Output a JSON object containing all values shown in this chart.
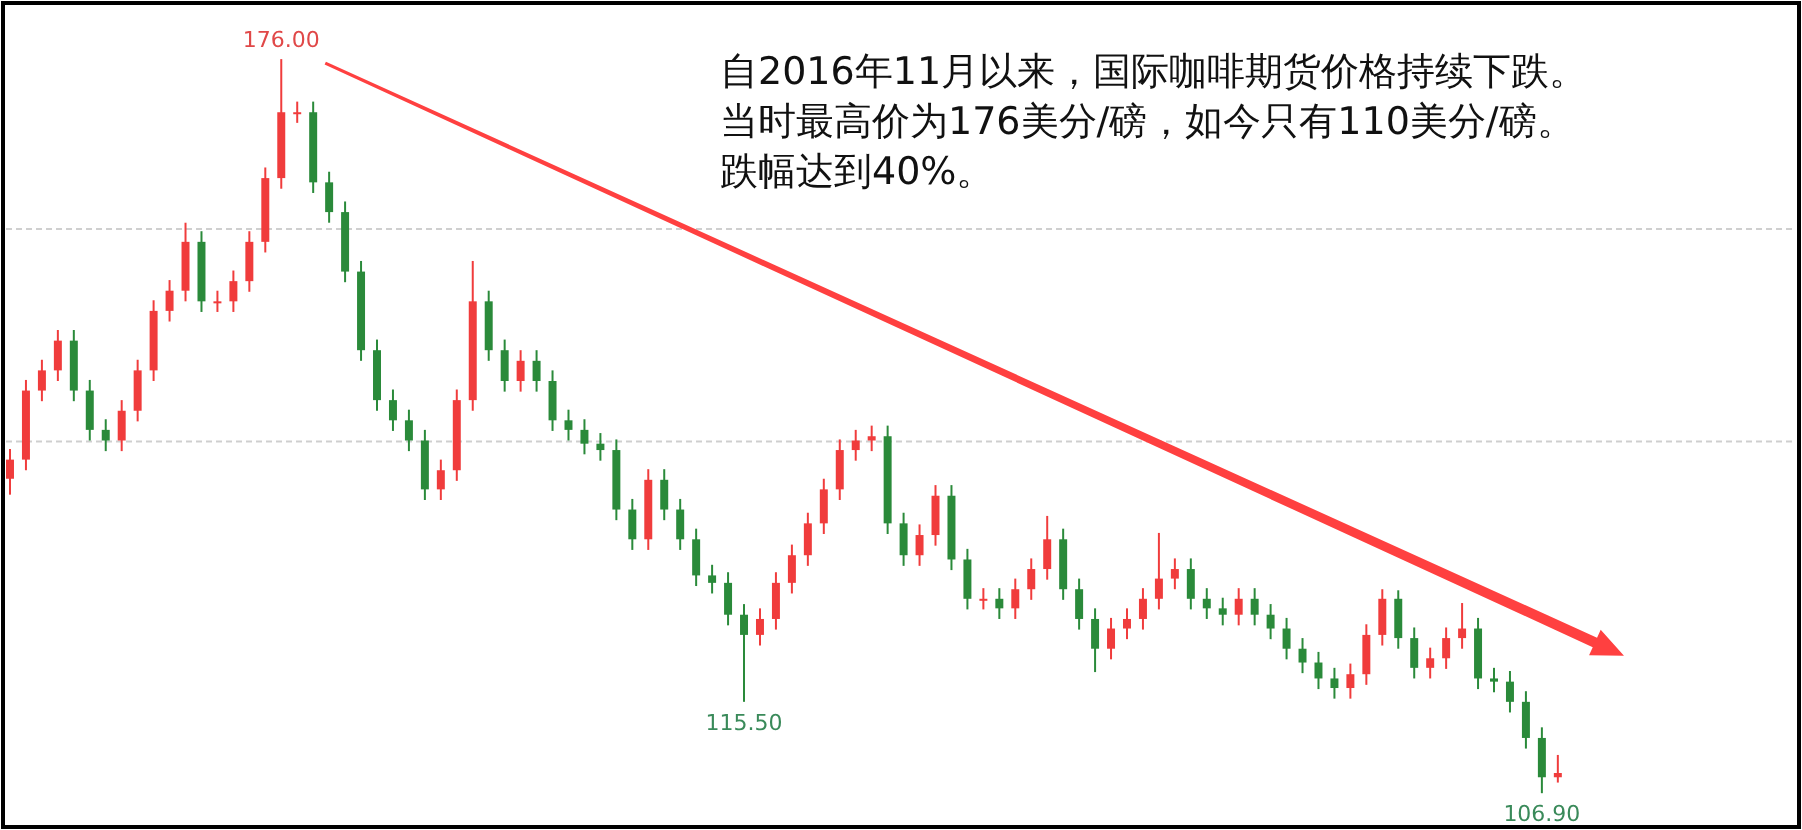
{
  "chart_data": {
    "type": "candlestick",
    "categories": [
      null,
      null,
      null,
      null,
      null,
      null,
      null,
      null,
      null,
      null,
      null,
      null,
      null,
      null,
      null,
      null,
      null,
      null,
      null,
      null,
      null,
      null,
      null,
      null,
      null,
      null,
      null,
      null,
      null,
      null,
      null,
      null,
      null,
      null,
      null,
      null,
      null,
      null,
      null,
      null,
      null,
      null,
      null,
      null,
      null,
      null,
      null,
      null,
      null,
      null,
      null,
      null,
      null,
      null,
      null,
      null,
      null,
      null,
      null,
      null,
      null,
      null,
      null,
      null,
      null,
      null,
      null,
      null,
      null,
      null,
      null,
      null,
      null,
      null,
      null,
      null,
      null,
      null,
      null,
      null,
      null,
      null,
      null,
      null,
      null,
      null,
      null,
      null,
      null,
      null,
      null,
      null,
      null,
      null,
      null,
      null,
      null,
      null
    ],
    "ohlc": [
      [
        136.5,
        139.3,
        135.0,
        138.3
      ],
      [
        138.3,
        145.8,
        137.3,
        144.8
      ],
      [
        144.8,
        147.7,
        143.8,
        146.7
      ],
      [
        146.7,
        150.5,
        145.7,
        149.5
      ],
      [
        149.5,
        150.5,
        143.8,
        144.8
      ],
      [
        144.8,
        145.8,
        140.1,
        141.1
      ],
      [
        141.1,
        142.1,
        139.1,
        140.1
      ],
      [
        140.1,
        143.9,
        139.1,
        142.9
      ],
      [
        142.9,
        147.7,
        141.9,
        146.7
      ],
      [
        146.7,
        153.3,
        145.7,
        152.3
      ],
      [
        152.3,
        155.2,
        151.3,
        154.2
      ],
      [
        154.2,
        160.6,
        153.2,
        158.8
      ],
      [
        158.8,
        159.8,
        152.2,
        153.2
      ],
      [
        153.2,
        154.2,
        152.2,
        153.2
      ],
      [
        153.2,
        156.1,
        152.2,
        155.1
      ],
      [
        155.1,
        159.8,
        154.1,
        158.8
      ],
      [
        158.8,
        165.8,
        157.8,
        164.8
      ],
      [
        164.8,
        176.0,
        163.8,
        171.0
      ],
      [
        171.0,
        172.0,
        170.0,
        171.0
      ],
      [
        171.0,
        172.0,
        163.4,
        164.4
      ],
      [
        164.4,
        165.4,
        160.6,
        161.6
      ],
      [
        161.6,
        162.6,
        155.0,
        156.0
      ],
      [
        156.0,
        157.0,
        147.6,
        148.6
      ],
      [
        148.6,
        149.6,
        142.9,
        143.9
      ],
      [
        143.9,
        144.9,
        141.0,
        142.0
      ],
      [
        142.0,
        143.0,
        139.1,
        140.1
      ],
      [
        140.1,
        141.1,
        134.5,
        135.5
      ],
      [
        135.5,
        138.3,
        134.5,
        137.3
      ],
      [
        137.3,
        144.9,
        136.3,
        143.9
      ],
      [
        143.9,
        157.0,
        142.9,
        153.2
      ],
      [
        153.2,
        154.2,
        147.6,
        148.6
      ],
      [
        148.6,
        149.6,
        144.7,
        145.7
      ],
      [
        145.7,
        148.6,
        144.7,
        147.6
      ],
      [
        147.6,
        148.6,
        144.7,
        145.7
      ],
      [
        145.7,
        146.7,
        141.0,
        142.0
      ],
      [
        142.0,
        143.0,
        140.1,
        141.1
      ],
      [
        141.1,
        142.1,
        138.8,
        139.8
      ],
      [
        139.8,
        140.8,
        138.2,
        139.2
      ],
      [
        139.2,
        140.2,
        132.6,
        133.6
      ],
      [
        133.6,
        134.6,
        129.8,
        130.8
      ],
      [
        130.8,
        137.4,
        129.8,
        136.4
      ],
      [
        136.4,
        137.4,
        132.6,
        133.6
      ],
      [
        133.6,
        134.6,
        129.8,
        130.8
      ],
      [
        130.8,
        131.8,
        126.4,
        127.4
      ],
      [
        127.4,
        128.4,
        125.7,
        126.7
      ],
      [
        126.7,
        127.7,
        122.7,
        123.7
      ],
      [
        123.7,
        124.7,
        115.5,
        121.8
      ],
      [
        121.8,
        124.3,
        120.8,
        123.3
      ],
      [
        123.3,
        127.7,
        122.3,
        126.7
      ],
      [
        126.7,
        130.3,
        125.7,
        129.3
      ],
      [
        129.3,
        133.3,
        128.3,
        132.3
      ],
      [
        132.3,
        136.5,
        131.3,
        135.5
      ],
      [
        135.5,
        140.2,
        134.5,
        139.2
      ],
      [
        139.2,
        141.1,
        138.2,
        140.1
      ],
      [
        140.1,
        141.5,
        139.1,
        140.5
      ],
      [
        140.5,
        141.5,
        131.3,
        132.3
      ],
      [
        132.3,
        133.3,
        128.3,
        129.3
      ],
      [
        129.3,
        132.2,
        128.3,
        131.2
      ],
      [
        131.2,
        135.9,
        130.2,
        134.9
      ],
      [
        134.9,
        135.9,
        127.9,
        128.9
      ],
      [
        128.9,
        129.9,
        124.2,
        125.2
      ],
      [
        125.2,
        126.2,
        124.2,
        125.2
      ],
      [
        125.2,
        126.2,
        123.3,
        124.3
      ],
      [
        124.3,
        127.1,
        123.3,
        126.1
      ],
      [
        126.1,
        129.0,
        125.1,
        128.0
      ],
      [
        128.0,
        133.0,
        127.0,
        130.8
      ],
      [
        130.8,
        131.8,
        125.1,
        126.1
      ],
      [
        126.1,
        127.1,
        122.3,
        123.3
      ],
      [
        123.3,
        124.3,
        118.3,
        120.5
      ],
      [
        120.5,
        123.4,
        119.5,
        122.4
      ],
      [
        122.4,
        124.3,
        121.4,
        123.3
      ],
      [
        123.3,
        126.2,
        122.3,
        125.2
      ],
      [
        125.2,
        131.4,
        124.2,
        127.1
      ],
      [
        127.1,
        129.0,
        126.1,
        128.0
      ],
      [
        128.0,
        129.0,
        124.2,
        125.2
      ],
      [
        125.2,
        126.2,
        123.3,
        124.3
      ],
      [
        124.3,
        125.3,
        122.7,
        123.7
      ],
      [
        123.7,
        126.2,
        122.7,
        125.2
      ],
      [
        125.2,
        126.2,
        122.7,
        123.7
      ],
      [
        123.7,
        124.7,
        121.4,
        122.4
      ],
      [
        122.4,
        123.4,
        119.5,
        120.5
      ],
      [
        120.5,
        121.5,
        118.2,
        119.2
      ],
      [
        119.2,
        120.2,
        116.7,
        117.7
      ],
      [
        117.7,
        118.7,
        115.8,
        116.8
      ],
      [
        116.8,
        119.1,
        115.8,
        118.1
      ],
      [
        118.1,
        122.8,
        117.1,
        121.8
      ],
      [
        121.8,
        126.1,
        120.8,
        125.2
      ],
      [
        125.2,
        126.0,
        120.5,
        121.5
      ],
      [
        121.5,
        122.5,
        117.7,
        118.7
      ],
      [
        118.7,
        120.6,
        117.7,
        119.6
      ],
      [
        119.6,
        122.5,
        118.6,
        121.5
      ],
      [
        121.5,
        124.8,
        120.5,
        122.4
      ],
      [
        122.4,
        123.4,
        116.7,
        117.7
      ],
      [
        117.7,
        118.7,
        116.4,
        117.4
      ],
      [
        117.4,
        118.4,
        114.5,
        115.5
      ],
      [
        115.5,
        116.5,
        111.1,
        112.1
      ],
      [
        112.1,
        113.1,
        106.9,
        108.4
      ],
      [
        108.4,
        110.5,
        107.9,
        108.8
      ]
    ],
    "ylim": [
      104,
      181
    ],
    "yticks": [
      {
        "value": 160,
        "label": null
      },
      {
        "value": 140,
        "label": null
      }
    ],
    "grid": "y",
    "annotations": [
      "自2016年11月以来，国际咖啡期货价格持续下跌。",
      "当时最高价为176美分/磅，如今只有110美分/磅。",
      "跌幅达到40%。",
      {
        "text": "176.00",
        "y": 176.0
      },
      {
        "text": "115.50",
        "y": 115.5
      },
      {
        "text": "106.90",
        "y": 106.9
      }
    ]
  }
}
